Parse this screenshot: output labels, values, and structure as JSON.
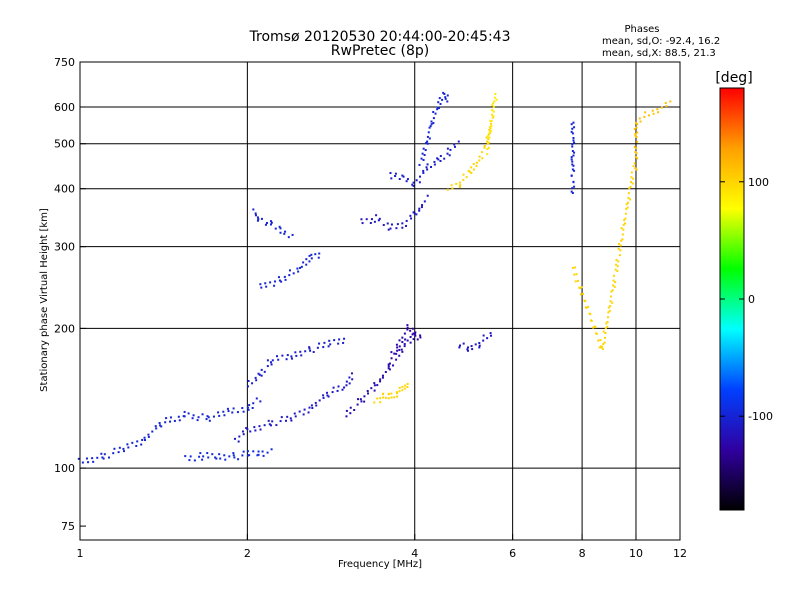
{
  "chart_data": {
    "type": "scatter",
    "title": "Tromsø 20120530 20:44:00-20:45:43",
    "subtitle": "RwPretec (8p)",
    "xlabel": "Frequency [MHz]",
    "ylabel": "Stationary phase Virtual Height [km]",
    "x_scale": "log",
    "y_scale": "log",
    "xlim": [
      1,
      12
    ],
    "ylim": [
      70,
      750
    ],
    "x_ticks": [
      1,
      2,
      4,
      6,
      8,
      10,
      12
    ],
    "y_ticks": [
      75,
      100,
      200,
      300,
      400,
      500,
      600,
      750
    ],
    "x_gridlines": [
      2,
      4,
      6,
      8,
      10
    ],
    "y_gridlines": [
      100,
      200,
      300,
      400,
      500,
      600
    ],
    "phase_stats": {
      "heading": "Phases",
      "line1": "mean, sd,O: -92.4, 16.2",
      "line2": "mean, sd,X:  88.5, 21.3"
    },
    "colorbar": {
      "label": "[deg]",
      "range": [
        -180,
        180
      ],
      "ticks": [
        100,
        0,
        -100
      ],
      "colors": [
        "#ff0000",
        "#ffa000",
        "#ffff00",
        "#00ff00",
        "#00ffff",
        "#0040ff",
        "#3000a0",
        "#000000"
      ]
    },
    "traces": [
      {
        "x": [
          1.0,
          1.1,
          1.2,
          1.3,
          1.4,
          1.55,
          1.7,
          1.85,
          2.0,
          2.1
        ],
        "y": [
          103,
          106,
          110,
          115,
          125,
          130,
          128,
          132,
          135,
          140
        ],
        "phase": -100
      },
      {
        "x": [
          1.55,
          1.65,
          1.75,
          1.9,
          2.0,
          2.1,
          2.2
        ],
        "y": [
          105,
          106,
          106,
          106,
          107,
          108,
          108
        ],
        "phase": -95
      },
      {
        "x": [
          1.9,
          2.0,
          2.2,
          2.4,
          2.6,
          2.8,
          3.0,
          3.1
        ],
        "y": [
          115,
          120,
          125,
          128,
          135,
          145,
          150,
          160
        ],
        "phase": -110
      },
      {
        "x": [
          2.0,
          2.1,
          2.2,
          2.4,
          2.6,
          2.8,
          3.0
        ],
        "y": [
          150,
          158,
          170,
          175,
          180,
          185,
          190
        ],
        "phase": -105
      },
      {
        "x": [
          3.0,
          3.2,
          3.4,
          3.6,
          3.8,
          4.0
        ],
        "y": [
          130,
          140,
          150,
          165,
          180,
          195
        ],
        "phase": -120
      },
      {
        "x": [
          3.4,
          3.5,
          3.6,
          3.7,
          3.8,
          3.9
        ],
        "y": [
          140,
          142,
          143,
          145,
          148,
          152
        ],
        "phase": 100
      },
      {
        "x": [
          3.6,
          3.7,
          3.8,
          3.9,
          4.0,
          4.1
        ],
        "y": [
          170,
          180,
          190,
          200,
          195,
          190
        ],
        "phase": -125
      },
      {
        "x": [
          2.05,
          2.1,
          2.2,
          2.3,
          2.4
        ],
        "y": [
          355,
          345,
          335,
          325,
          318
        ],
        "phase": -100
      },
      {
        "x": [
          3.2,
          3.4,
          3.6,
          3.8,
          4.0,
          4.2
        ],
        "y": [
          340,
          345,
          330,
          335,
          350,
          380
        ],
        "phase": -110
      },
      {
        "x": [
          3.6,
          3.8,
          4.0,
          4.2,
          4.4,
          4.6,
          4.8
        ],
        "y": [
          430,
          420,
          410,
          440,
          460,
          480,
          500
        ],
        "phase": -105
      },
      {
        "x": [
          4.1,
          4.2,
          4.3,
          4.4,
          4.5,
          4.6
        ],
        "y": [
          450,
          500,
          560,
          600,
          640,
          620
        ],
        "phase": -100
      },
      {
        "x": [
          4.6,
          4.8,
          5.0,
          5.2,
          5.4,
          5.5
        ],
        "y": [
          400,
          410,
          430,
          460,
          500,
          560
        ],
        "phase": 100
      },
      {
        "x": [
          5.4,
          5.5,
          5.55,
          5.6
        ],
        "y": [
          480,
          560,
          610,
          640
        ],
        "phase": 90
      },
      {
        "x": [
          4.8,
          5.0,
          5.2,
          5.5
        ],
        "y": [
          185,
          180,
          185,
          195
        ],
        "phase": -110
      },
      {
        "x": [
          2.1,
          2.3,
          2.5,
          2.6,
          2.7
        ],
        "y": [
          245,
          255,
          270,
          285,
          290
        ],
        "phase": -100
      },
      {
        "x": [
          7.7,
          7.7,
          7.7,
          7.7,
          7.7
        ],
        "y": [
          390,
          420,
          460,
          500,
          560
        ],
        "phase": -100
      },
      {
        "x": [
          10.0,
          10.0,
          10.0,
          11.5
        ],
        "y": [
          440,
          520,
          560,
          610
        ],
        "phase": 110
      },
      {
        "x": [
          7.7,
          8.7,
          9.9
        ],
        "y": [
          270,
          180,
          440
        ],
        "phase": 100
      }
    ]
  }
}
